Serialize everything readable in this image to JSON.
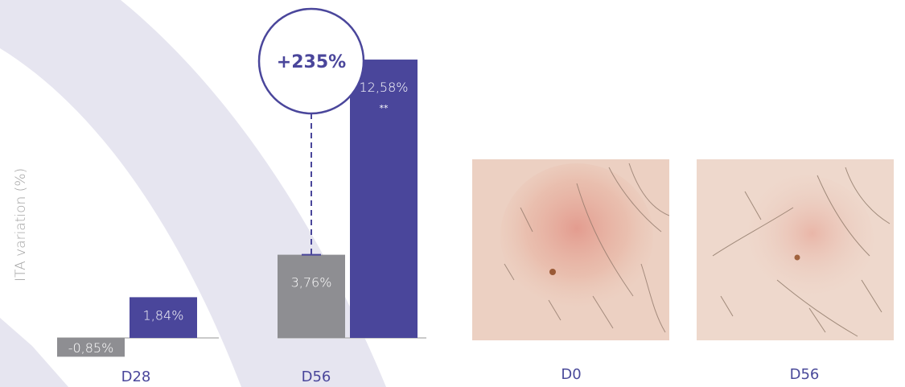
{
  "chart_data": {
    "type": "bar",
    "ylabel": "ITA variation (%)",
    "categories": [
      "D28",
      "D56"
    ],
    "series": [
      {
        "color": "#8e8e92",
        "values": [
          -0.85,
          3.76
        ],
        "labels": [
          "-0,85%",
          "3,76%"
        ]
      },
      {
        "color": "#4a469b",
        "values": [
          1.84,
          12.58
        ],
        "labels": [
          "1,84%",
          "12,58%"
        ]
      }
    ],
    "significance": [
      "",
      "**"
    ],
    "callout": {
      "text": "+235%",
      "category": "D56"
    },
    "grid": false
  },
  "photos": [
    {
      "label": "D0",
      "intensity": 1.0
    },
    {
      "label": "D56",
      "intensity": 0.45
    }
  ],
  "colors": {
    "accent": "#4a469b",
    "gray": "#8e8e92",
    "arc": "#e6e5f0",
    "axis": "#b9b9b9"
  }
}
